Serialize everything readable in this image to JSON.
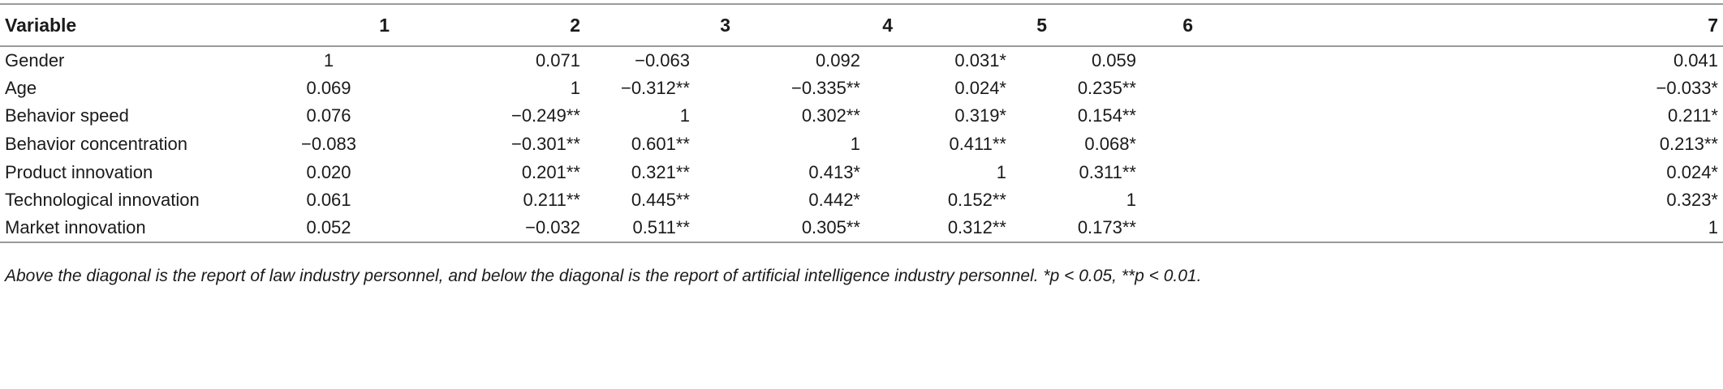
{
  "table": {
    "header": [
      "Variable",
      "1",
      "2",
      "3",
      "4",
      "5",
      "6",
      "7"
    ],
    "rows": [
      [
        "Gender",
        "1",
        "0.071",
        "−0.063",
        "0.092",
        "0.031*",
        "0.059",
        "0.041"
      ],
      [
        "Age",
        "0.069",
        "1",
        "−0.312**",
        "−0.335**",
        "0.024*",
        "0.235**",
        "−0.033*"
      ],
      [
        "Behavior speed",
        "0.076",
        "−0.249**",
        "1",
        "0.302**",
        "0.319*",
        "0.154**",
        "0.211*"
      ],
      [
        "Behavior concentration",
        "−0.083",
        "−0.301**",
        "0.601**",
        "1",
        "0.411**",
        "0.068*",
        "0.213**"
      ],
      [
        "Product innovation",
        "0.020",
        "0.201**",
        "0.321**",
        "0.413*",
        "1",
        "0.311**",
        "0.024*"
      ],
      [
        "Technological innovation",
        "0.061",
        "0.211**",
        "0.445**",
        "0.442*",
        "0.152**",
        "1",
        "0.323*"
      ],
      [
        "Market innovation",
        "0.052",
        "−0.032",
        "0.511**",
        "0.305**",
        "0.312**",
        "0.173**",
        "1"
      ]
    ]
  },
  "footnote": "Above the diagonal is the report of law industry personnel, and below the diagonal is the report of artificial intelligence industry personnel. *p < 0.05, **p < 0.01."
}
